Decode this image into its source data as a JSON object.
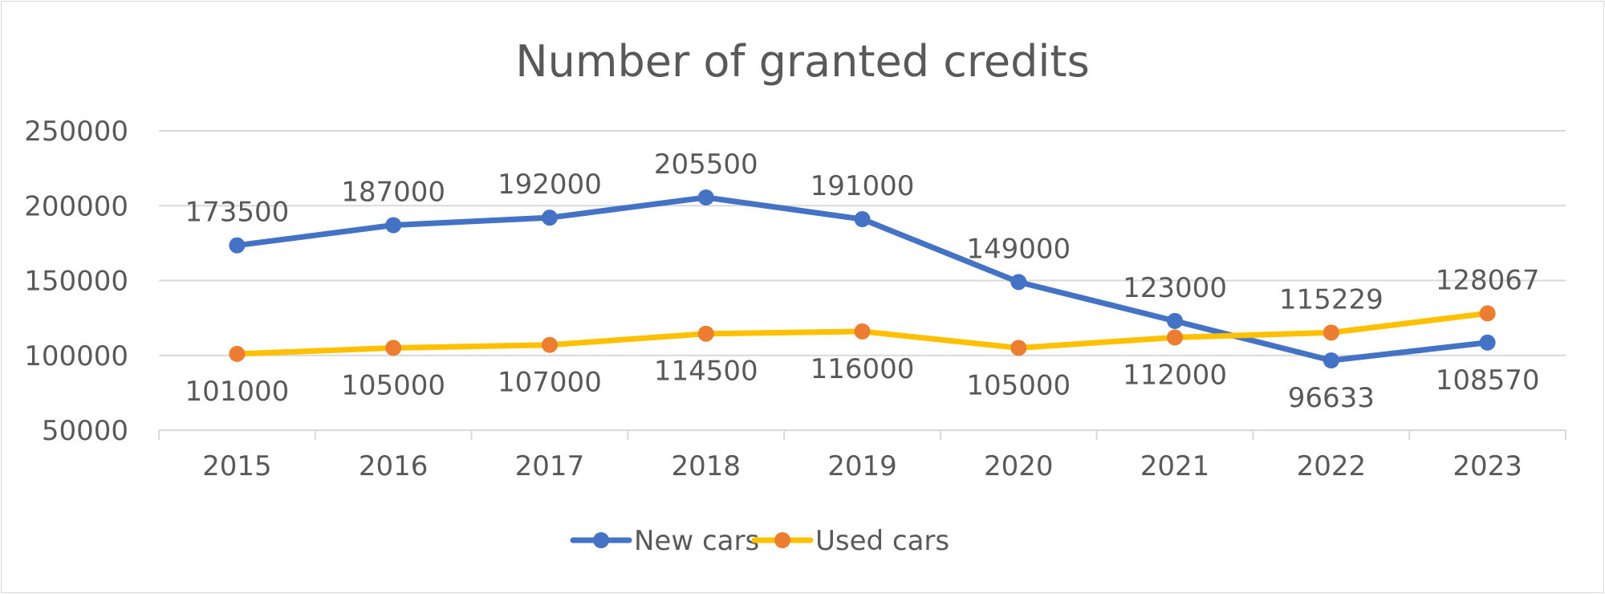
{
  "chart_data": {
    "type": "line",
    "title": "Number of granted credits",
    "xlabel": "",
    "ylabel": "",
    "categories": [
      "2015",
      "2016",
      "2017",
      "2018",
      "2019",
      "2020",
      "2021",
      "2022",
      "2023"
    ],
    "ylim": [
      50000,
      250000
    ],
    "yticks": [
      "50000",
      "100000",
      "150000",
      "200000",
      "250000"
    ],
    "grid": true,
    "legend": "bottom",
    "series": [
      {
        "name": "New cars",
        "color": "#4472c4",
        "marker_color": "#4472c4",
        "values": [
          173500,
          187000,
          192000,
          205500,
          191000,
          149000,
          123000,
          96633,
          108570
        ]
      },
      {
        "name": "Used cars",
        "color": "#ffc000",
        "marker_color": "#ed7d31",
        "values": [
          101000,
          105000,
          107000,
          114500,
          116000,
          105000,
          112000,
          115229,
          128067
        ]
      }
    ]
  }
}
